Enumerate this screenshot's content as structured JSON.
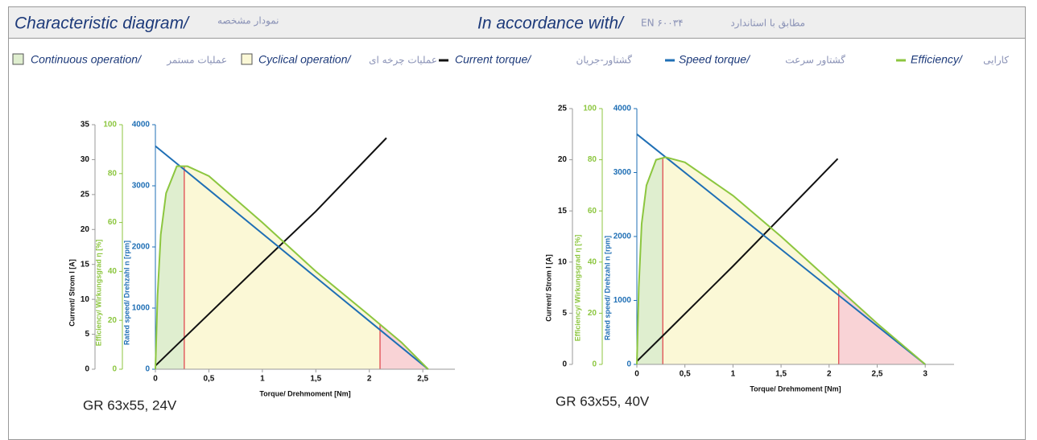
{
  "header": {
    "title": "Characteristic diagram/",
    "title_fa": "نمودار مشخصه",
    "standard_label": "In accordance with/",
    "standard_label_fa": "مطابق با استاندارد",
    "standard": "EN ۶۰۰۳۴"
  },
  "legend": [
    {
      "label": "Continuous operation/",
      "label_fa": "عملیات مستمر",
      "marker": "square",
      "color": "#dfeecf"
    },
    {
      "label": "Cyclical operation/",
      "label_fa": "عملیات چرخه ای",
      "marker": "square",
      "color": "#fbf8d6"
    },
    {
      "label": "Current torque/",
      "label_fa": "گشتاور-جریان",
      "marker": "line",
      "color": "#111111"
    },
    {
      "label": "Speed torque/",
      "label_fa": "گشتاور سرعت",
      "marker": "line",
      "color": "#1f6fb5"
    },
    {
      "label": "Efficiency/",
      "label_fa": "کارایی",
      "marker": "line",
      "color": "#8cc63f"
    }
  ],
  "chart_data": [
    {
      "type": "line",
      "caption": "GR 63x55, 24V",
      "xlabel": "Torque/ Drehmoment [Nm]",
      "ylabel": "Current/ Strom I [A]",
      "y2label": "Efficiency/ Wirkungsgrad η [%]",
      "y3label": "Rated speed/ Drehzahl n [rpm]",
      "xlim": [
        0,
        2.8
      ],
      "xticks": [
        0,
        {
          "value": 0.5,
          "label": "0,5"
        },
        1,
        {
          "value": 1.5,
          "label": "1,5"
        },
        2,
        {
          "value": 2.5,
          "label": "2,5"
        }
      ],
      "ylim": [
        0,
        35
      ],
      "yticks": [
        0,
        5,
        10,
        15,
        20,
        25,
        30,
        35
      ],
      "y2lim": [
        0,
        100
      ],
      "y2ticks": [
        0,
        20,
        40,
        60,
        80,
        100
      ],
      "y3lim": [
        0,
        4000
      ],
      "y3ticks": [
        0,
        1000,
        2000,
        3000,
        4000
      ],
      "zone_limits": [
        0.27,
        2.1
      ],
      "zone_colors": [
        "#dfeecf",
        "#fbf8d6",
        "#f9d3d6"
      ],
      "series": [
        {
          "axis": "y",
          "color": "#111111",
          "x": [
            0,
            0.27,
            1,
            1.5,
            2.16
          ],
          "values": [
            0.5,
            4.5,
            15.3,
            22.6,
            33.1
          ]
        },
        {
          "axis": "y3",
          "color": "#1f6fb5",
          "x": [
            0,
            0.27,
            1,
            1.5,
            2.1,
            2.55
          ],
          "values": [
            3650,
            3265,
            2219,
            1503,
            644,
            0
          ]
        },
        {
          "axis": "y2",
          "color": "#8cc63f",
          "x": [
            0,
            0.02,
            0.05,
            0.1,
            0.2,
            0.3,
            0.5,
            1,
            1.5,
            2,
            2.3,
            2.55
          ],
          "values": [
            0,
            30,
            55,
            72,
            83,
            83,
            79,
            60,
            40,
            22,
            11,
            0
          ]
        }
      ]
    },
    {
      "type": "line",
      "caption": "GR 63x55, 40V",
      "xlabel": "Torque/ Drehmoment [Nm]",
      "ylabel": "Current/ Strom I [A]",
      "y2label": "Efficiency/ Wirkungsgrad η [%]",
      "y3label": "Rated speed/ Drehzahl n [rpm]",
      "xlim": [
        0,
        3.3
      ],
      "xticks": [
        0,
        {
          "value": 0.5,
          "label": "0,5"
        },
        1,
        {
          "value": 1.5,
          "label": "1,5"
        },
        2,
        {
          "value": 2.5,
          "label": "2,5"
        },
        3
      ],
      "ylim": [
        0,
        25
      ],
      "yticks": [
        0,
        5,
        10,
        15,
        20,
        25
      ],
      "y2lim": [
        0,
        100
      ],
      "y2ticks": [
        0,
        20,
        40,
        60,
        80,
        100
      ],
      "y3lim": [
        0,
        4000
      ],
      "y3ticks": [
        0,
        1000,
        2000,
        3000,
        4000
      ],
      "zone_limits": [
        0.27,
        2.1
      ],
      "zone_colors": [
        "#dfeecf",
        "#fbf8d6",
        "#f9d3d6"
      ],
      "series": [
        {
          "axis": "y",
          "color": "#111111",
          "x": [
            0,
            0.27,
            1,
            1.5,
            2.09
          ],
          "values": [
            0.3,
            2.8,
            9.6,
            14.4,
            20.1
          ]
        },
        {
          "axis": "y3",
          "color": "#1f6fb5",
          "x": [
            0,
            0.27,
            1,
            1.5,
            2.1,
            3
          ],
          "values": [
            3600,
            3276,
            2400,
            1800,
            1080,
            0
          ]
        },
        {
          "axis": "y2",
          "color": "#8cc63f",
          "x": [
            0,
            0.02,
            0.05,
            0.1,
            0.2,
            0.3,
            0.5,
            1,
            1.5,
            2,
            2.5,
            3
          ],
          "values": [
            0,
            30,
            55,
            70,
            80,
            81,
            79,
            66,
            50,
            33,
            16,
            0
          ]
        }
      ]
    }
  ]
}
